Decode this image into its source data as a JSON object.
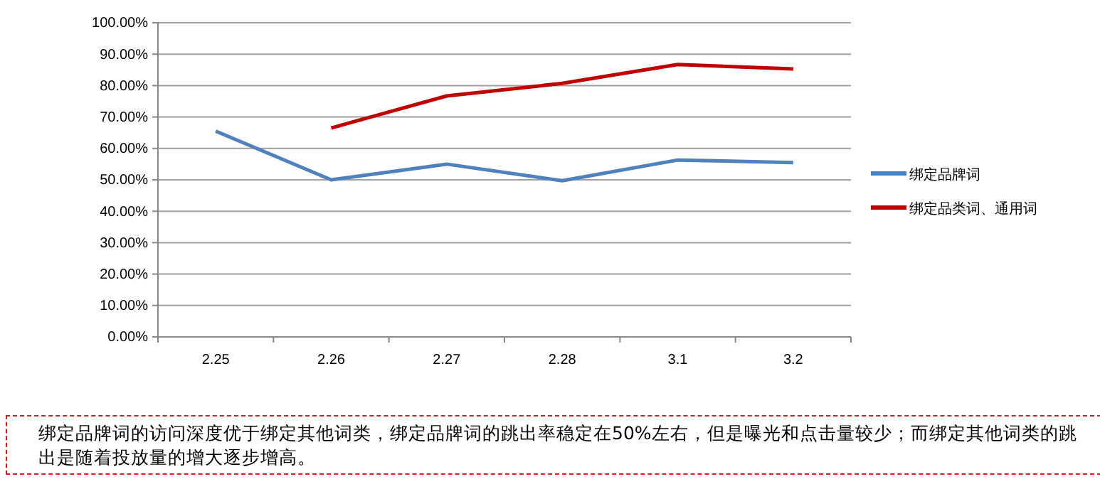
{
  "chart_data": {
    "type": "line",
    "categories": [
      "2.25",
      "2.26",
      "2.27",
      "2.28",
      "3.1",
      "3.2"
    ],
    "series": [
      {
        "name": "绑定品牌词",
        "color": "#4f81bd",
        "values": [
          65.5,
          50,
          55,
          49.7,
          56.3,
          55.5
        ]
      },
      {
        "name": "绑定品类词、通用词",
        "color": "#c00000",
        "values": [
          null,
          66.5,
          76.7,
          80.7,
          86.7,
          85.3
        ]
      }
    ],
    "ylim": [
      0,
      100
    ],
    "yticks": [
      {
        "value": 0,
        "label": "0.00%"
      },
      {
        "value": 10,
        "label": "10.00%"
      },
      {
        "value": 20,
        "label": "20.00%"
      },
      {
        "value": 30,
        "label": "30.00%"
      },
      {
        "value": 40,
        "label": "40.00%"
      },
      {
        "value": 50,
        "label": "50.00%"
      },
      {
        "value": 60,
        "label": "60.00%"
      },
      {
        "value": 70,
        "label": "70.00%"
      },
      {
        "value": 80,
        "label": "80.00%"
      },
      {
        "value": 90,
        "label": "90.00%"
      },
      {
        "value": 100,
        "label": "100.00%"
      }
    ],
    "grid": "y",
    "legend": "right",
    "marker": "none",
    "line_style": "solid",
    "annotations": [
      "绑定品牌词的访问深度优于绑定其他词类，绑定品牌词的跳出率稳定在50%左右，但是曝光和点击量较少；而绑定其他词类的跳出是随着投放量的增大逐步增高。"
    ]
  }
}
